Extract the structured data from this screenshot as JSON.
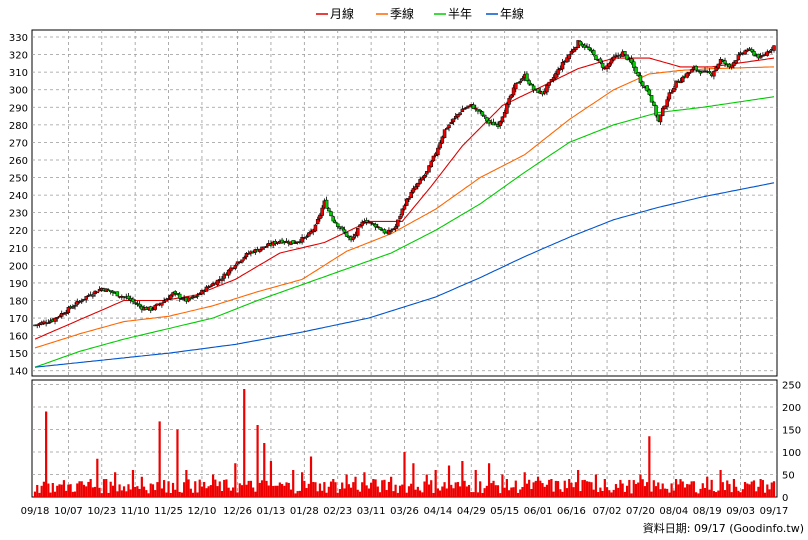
{
  "chart_data": {
    "type": "candlestick",
    "legend": [
      {
        "name": "月線",
        "color": "#dd0000"
      },
      {
        "name": "季線",
        "color": "#ff6600"
      },
      {
        "name": "半年",
        "color": "#00cc00"
      },
      {
        "name": "年線",
        "color": "#0055cc"
      }
    ],
    "price_axis": {
      "ticks": [
        140,
        150,
        160,
        170,
        180,
        190,
        200,
        210,
        220,
        230,
        240,
        250,
        260,
        270,
        280,
        290,
        300,
        310,
        320,
        330
      ],
      "ylim": [
        137,
        334
      ],
      "grid": true
    },
    "volume_axis": {
      "ticks": [
        0,
        50,
        100,
        150,
        200,
        250
      ],
      "ylim": [
        0,
        260
      ]
    },
    "x_labels": [
      "09/18",
      "10/07",
      "10/23",
      "11/10",
      "11/25",
      "12/10",
      "12/26",
      "01/13",
      "01/28",
      "02/23",
      "03/11",
      "03/26",
      "04/14",
      "04/29",
      "05/15",
      "06/01",
      "06/16",
      "07/02",
      "07/20",
      "08/04",
      "08/19",
      "09/03",
      "09/17"
    ],
    "close_anchors": [
      [
        0,
        166
      ],
      [
        8,
        169
      ],
      [
        16,
        176
      ],
      [
        24,
        183
      ],
      [
        30,
        187
      ],
      [
        36,
        184
      ],
      [
        42,
        181
      ],
      [
        48,
        176
      ],
      [
        52,
        175
      ],
      [
        56,
        178
      ],
      [
        62,
        184
      ],
      [
        68,
        180
      ],
      [
        72,
        182
      ],
      [
        78,
        188
      ],
      [
        84,
        193
      ],
      [
        90,
        201
      ],
      [
        96,
        207
      ],
      [
        104,
        211
      ],
      [
        110,
        214
      ],
      [
        116,
        213
      ],
      [
        122,
        216
      ],
      [
        126,
        222
      ],
      [
        130,
        236
      ],
      [
        134,
        226
      ],
      [
        138,
        220
      ],
      [
        142,
        214
      ],
      [
        148,
        226
      ],
      [
        154,
        222
      ],
      [
        158,
        218
      ],
      [
        162,
        222
      ],
      [
        166,
        235
      ],
      [
        170,
        243
      ],
      [
        176,
        253
      ],
      [
        180,
        264
      ],
      [
        184,
        277
      ],
      [
        188,
        283
      ],
      [
        192,
        289
      ],
      [
        196,
        291
      ],
      [
        200,
        287
      ],
      [
        204,
        281
      ],
      [
        208,
        280
      ],
      [
        212,
        291
      ],
      [
        216,
        303
      ],
      [
        220,
        308
      ],
      [
        224,
        300
      ],
      [
        228,
        298
      ],
      [
        232,
        305
      ],
      [
        236,
        313
      ],
      [
        240,
        320
      ],
      [
        244,
        327
      ],
      [
        248,
        324
      ],
      [
        252,
        318
      ],
      [
        256,
        312
      ],
      [
        260,
        318
      ],
      [
        264,
        321
      ],
      [
        268,
        315
      ],
      [
        272,
        305
      ],
      [
        276,
        298
      ],
      [
        280,
        282
      ],
      [
        284,
        295
      ],
      [
        288,
        304
      ],
      [
        292,
        308
      ],
      [
        296,
        312
      ],
      [
        300,
        310
      ],
      [
        304,
        309
      ],
      [
        308,
        317
      ],
      [
        312,
        313
      ],
      [
        316,
        319
      ],
      [
        320,
        323
      ],
      [
        326,
        318
      ],
      [
        332,
        325
      ]
    ],
    "moving_averages": [
      {
        "name": "月線",
        "values": [
          [
            0,
            158
          ],
          [
            20,
            169
          ],
          [
            40,
            180
          ],
          [
            58,
            180
          ],
          [
            72,
            183
          ],
          [
            90,
            192
          ],
          [
            110,
            207
          ],
          [
            130,
            213
          ],
          [
            150,
            225
          ],
          [
            165,
            225
          ],
          [
            178,
            245
          ],
          [
            192,
            268
          ],
          [
            210,
            291
          ],
          [
            228,
            302
          ],
          [
            244,
            312
          ],
          [
            260,
            318
          ],
          [
            276,
            318
          ],
          [
            290,
            313
          ],
          [
            304,
            313
          ],
          [
            332,
            318
          ]
        ]
      },
      {
        "name": "季線",
        "values": [
          [
            0,
            153
          ],
          [
            20,
            161
          ],
          [
            40,
            168
          ],
          [
            60,
            171
          ],
          [
            80,
            177
          ],
          [
            100,
            185
          ],
          [
            120,
            192
          ],
          [
            140,
            208
          ],
          [
            160,
            218
          ],
          [
            180,
            232
          ],
          [
            200,
            250
          ],
          [
            220,
            263
          ],
          [
            240,
            283
          ],
          [
            260,
            300
          ],
          [
            276,
            309
          ],
          [
            290,
            311
          ],
          [
            304,
            312
          ],
          [
            332,
            313
          ]
        ]
      },
      {
        "name": "半年",
        "values": [
          [
            0,
            142
          ],
          [
            20,
            151
          ],
          [
            40,
            158
          ],
          [
            60,
            164
          ],
          [
            80,
            170
          ],
          [
            100,
            180
          ],
          [
            120,
            189
          ],
          [
            140,
            198
          ],
          [
            160,
            207
          ],
          [
            180,
            220
          ],
          [
            200,
            235
          ],
          [
            220,
            253
          ],
          [
            240,
            270
          ],
          [
            260,
            280
          ],
          [
            280,
            287
          ],
          [
            300,
            290
          ],
          [
            332,
            296
          ]
        ]
      },
      {
        "name": "年線",
        "values": [
          [
            0,
            142
          ],
          [
            30,
            146
          ],
          [
            60,
            150
          ],
          [
            90,
            155
          ],
          [
            120,
            162
          ],
          [
            150,
            170
          ],
          [
            180,
            182
          ],
          [
            200,
            193
          ],
          [
            220,
            205
          ],
          [
            240,
            216
          ],
          [
            260,
            226
          ],
          [
            280,
            233
          ],
          [
            300,
            239
          ],
          [
            332,
            247
          ]
        ]
      }
    ],
    "volume_anchors": [
      [
        0,
        12
      ],
      [
        5,
        190
      ],
      [
        6,
        30
      ],
      [
        10,
        25
      ],
      [
        20,
        35
      ],
      [
        25,
        40
      ],
      [
        28,
        85
      ],
      [
        32,
        40
      ],
      [
        36,
        55
      ],
      [
        38,
        28
      ],
      [
        44,
        60
      ],
      [
        48,
        45
      ],
      [
        52,
        30
      ],
      [
        56,
        168
      ],
      [
        60,
        35
      ],
      [
        64,
        150
      ],
      [
        68,
        60
      ],
      [
        72,
        35
      ],
      [
        80,
        50
      ],
      [
        90,
        75
      ],
      [
        94,
        240
      ],
      [
        100,
        160
      ],
      [
        103,
        120
      ],
      [
        106,
        80
      ],
      [
        108,
        25
      ],
      [
        116,
        60
      ],
      [
        120,
        55
      ],
      [
        124,
        90
      ],
      [
        128,
        30
      ],
      [
        134,
        40
      ],
      [
        140,
        50
      ],
      [
        144,
        45
      ],
      [
        148,
        55
      ],
      [
        152,
        40
      ],
      [
        160,
        45
      ],
      [
        166,
        100
      ],
      [
        170,
        75
      ],
      [
        176,
        50
      ],
      [
        180,
        60
      ],
      [
        186,
        70
      ],
      [
        192,
        80
      ],
      [
        198,
        60
      ],
      [
        204,
        75
      ],
      [
        210,
        50
      ],
      [
        220,
        55
      ],
      [
        226,
        45
      ],
      [
        232,
        40
      ],
      [
        240,
        40
      ],
      [
        244,
        60
      ],
      [
        248,
        35
      ],
      [
        252,
        50
      ],
      [
        256,
        40
      ],
      [
        264,
        30
      ],
      [
        272,
        50
      ],
      [
        276,
        135
      ],
      [
        282,
        30
      ],
      [
        288,
        40
      ],
      [
        296,
        35
      ],
      [
        302,
        45
      ],
      [
        308,
        60
      ],
      [
        314,
        40
      ],
      [
        320,
        30
      ],
      [
        326,
        40
      ],
      [
        332,
        35
      ]
    ]
  },
  "footer": {
    "credit": "資料日期: 09/17  (Goodinfo.tw)"
  }
}
